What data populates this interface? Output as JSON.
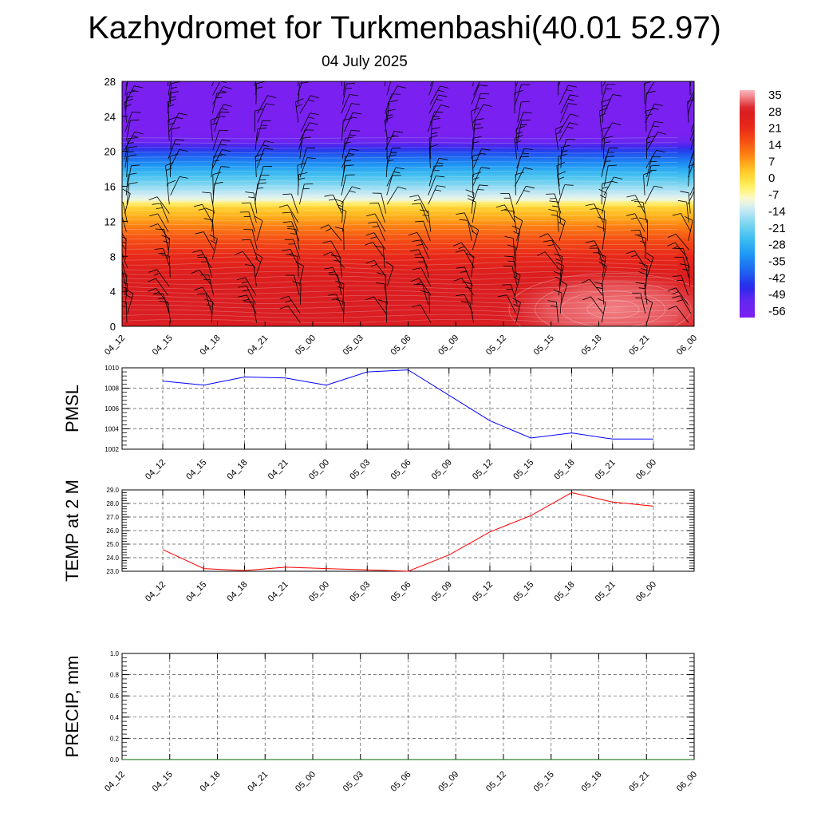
{
  "title": "Kazhydromet for Turkmenbashi(40.01 52.97)",
  "subtitle": "04 July 2025",
  "chart_data": [
    {
      "type": "heatmap",
      "description": "Vertical cross-section: temperature (shaded) and wind barbs vs time",
      "x_tick_labels": [
        "04_12",
        "04_15",
        "04_18",
        "04_21",
        "05_00",
        "05_03",
        "05_06",
        "05_09",
        "05_12",
        "05_15",
        "05_18",
        "05_21",
        "06_00"
      ],
      "y_ticks": [
        0,
        4,
        8,
        12,
        16,
        20,
        24,
        28
      ],
      "ylim": [
        0,
        28
      ],
      "colorbar": {
        "labels": [
          "35",
          "28",
          "21",
          "14",
          "7",
          "0",
          "-7",
          "-14",
          "-21",
          "-28",
          "-35",
          "-42",
          "-49",
          "-56"
        ],
        "range": [
          -60,
          38
        ]
      },
      "temperature_profile": [
        {
          "level": 0,
          "value": 30
        },
        {
          "level": 2,
          "value": 30
        },
        {
          "level": 6,
          "value": 27
        },
        {
          "level": 8,
          "value": 22
        },
        {
          "level": 10,
          "value": 16
        },
        {
          "level": 12,
          "value": 8
        },
        {
          "level": 13.8,
          "value": 1
        },
        {
          "level": 14.3,
          "value": -9
        },
        {
          "level": 16,
          "value": -18
        },
        {
          "level": 18,
          "value": -30
        },
        {
          "level": 20,
          "value": -44
        },
        {
          "level": 21.2,
          "value": -56
        },
        {
          "level": 22,
          "value": -60
        },
        {
          "level": 28,
          "value": -60
        }
      ],
      "warm_core": {
        "x_index": 10.3,
        "level": 2.5,
        "max_value": 35
      },
      "grid": false
    },
    {
      "type": "line",
      "ylabel": "PMSL",
      "x_tick_labels": [
        "04_12",
        "04_15",
        "04_18",
        "04_21",
        "05_00",
        "05_03",
        "05_06",
        "05_09",
        "05_12",
        "05_15",
        "05_18",
        "05_21",
        "06_00"
      ],
      "y_tick_labels": [
        "1010",
        "1008",
        "1006",
        "1004",
        "1002"
      ],
      "ylim": [
        1002,
        1010
      ],
      "series": [
        {
          "color": "#0000ff",
          "values": [
            1008.7,
            1008.3,
            1009.1,
            1009.0,
            1008.3,
            1009.6,
            1009.8,
            1007.3,
            1004.8,
            1003.1,
            1003.6,
            1003.0,
            1003.0
          ]
        }
      ],
      "grid": true
    },
    {
      "type": "line",
      "ylabel": "TEMP at 2 M",
      "x_tick_labels": [
        "04_12",
        "04_15",
        "04_18",
        "04_21",
        "05_00",
        "05_03",
        "05_06",
        "05_09",
        "05_12",
        "05_15",
        "05_18",
        "05_21",
        "06_00"
      ],
      "y_tick_labels": [
        "29.0",
        "28.0",
        "27.0",
        "26.0",
        "25.0",
        "24.0",
        "23.0"
      ],
      "ylim": [
        23,
        29
      ],
      "series": [
        {
          "color": "#ff0000",
          "values": [
            24.6,
            23.2,
            23.05,
            23.3,
            23.2,
            23.1,
            23.0,
            24.2,
            25.9,
            27.1,
            28.8,
            28.1,
            27.8
          ]
        }
      ],
      "grid": true
    },
    {
      "type": "line",
      "ylabel": "PRECIP, mm",
      "x_tick_labels": [
        "04_12",
        "04_15",
        "04_18",
        "04_21",
        "05_00",
        "05_03",
        "05_06",
        "05_09",
        "05_12",
        "05_15",
        "05_18",
        "05_21",
        "06_00"
      ],
      "y_tick_labels": [
        "1.0",
        "0.8",
        "0.6",
        "0.4",
        "0.2",
        "0.0"
      ],
      "ylim": [
        0,
        1
      ],
      "series": [
        {
          "color": "#006400",
          "values": [
            0,
            0,
            0,
            0,
            0,
            0,
            0,
            0,
            0,
            0,
            0,
            0,
            0
          ]
        }
      ],
      "grid": true
    }
  ]
}
